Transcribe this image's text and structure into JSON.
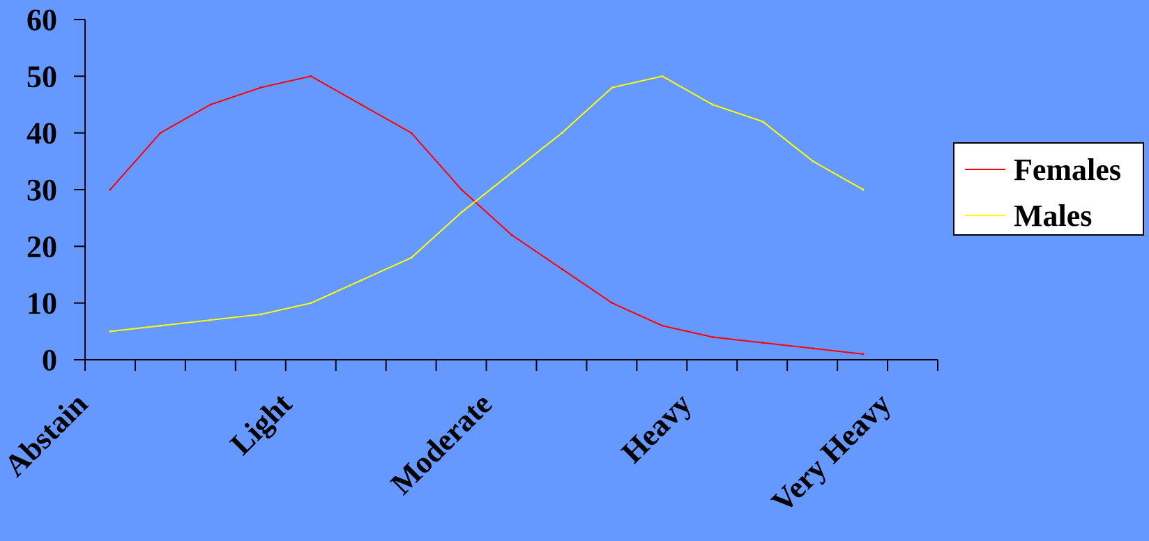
{
  "colors": {
    "background": "#6699ff",
    "axis": "#000000",
    "legend_box": "#ffffff"
  },
  "chart_data": {
    "type": "line",
    "title": "",
    "xlabel": "",
    "ylabel": "",
    "ylim": [
      0,
      60
    ],
    "y_ticks": [
      0,
      10,
      20,
      30,
      40,
      50,
      60
    ],
    "grid": false,
    "legend_position": "right",
    "x_category_labels": [
      "Abstain",
      "Light",
      "Moderate",
      "Heavy",
      "Very Heavy"
    ],
    "x_points": 16,
    "series": [
      {
        "name": "Females",
        "color": "#ff0000",
        "values": [
          30,
          40,
          45,
          48,
          50,
          45,
          40,
          30,
          22,
          16,
          10,
          6,
          4,
          3,
          2,
          1
        ]
      },
      {
        "name": "Males",
        "color": "#ffff00",
        "values": [
          5,
          6,
          7,
          8,
          10,
          14,
          18,
          26,
          33,
          40,
          48,
          50,
          45,
          42,
          35,
          30
        ]
      }
    ]
  }
}
